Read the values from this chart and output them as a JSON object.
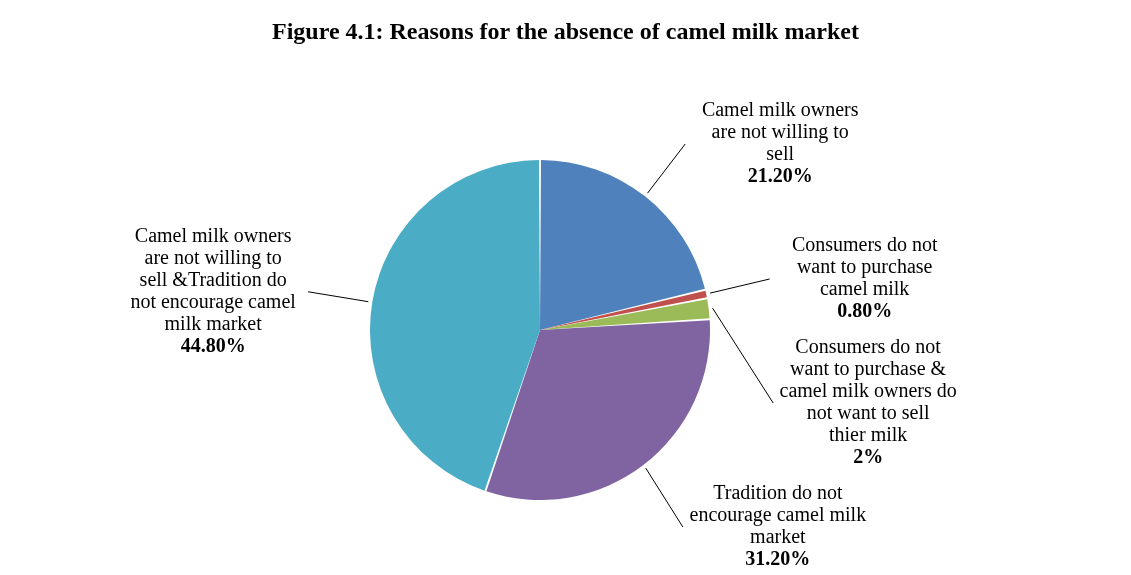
{
  "chart_data": {
    "type": "pie",
    "title": "Figure 4.1: Reasons for the absence of camel milk market",
    "categories": [
      "Camel milk owners are not willing to sell",
      "Consumers do not want to purchase camel milk",
      "Consumers do not want to purchase & camel milk owners do not want to sell thier milk",
      "Tradition do not encourage camel milk market",
      "Camel milk owners are not willing to sell &Tradition do not encourage camel milk market"
    ],
    "values": [
      21.2,
      0.8,
      2,
      31.2,
      44.8
    ],
    "colors": [
      "#4f81bd",
      "#c0504d",
      "#9bbb59",
      "#8064a2",
      "#4bacc6"
    ],
    "value_labels": [
      "21.20%",
      "0.80%",
      "2%",
      "31.20%",
      "44.80%"
    ]
  }
}
